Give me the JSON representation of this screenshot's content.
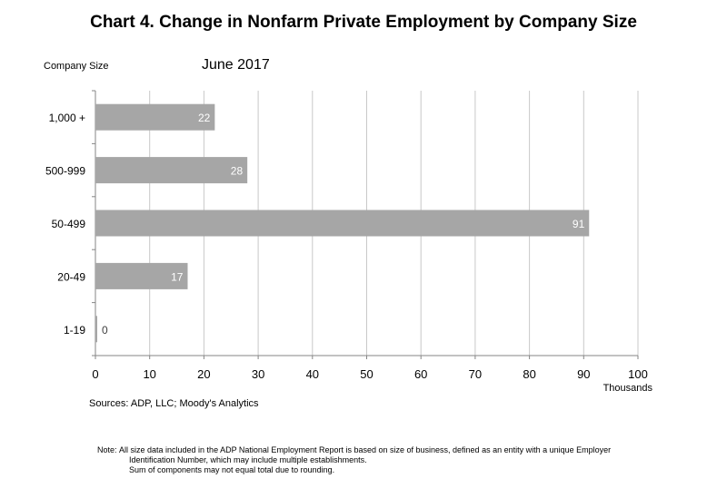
{
  "title": "Chart 4. Change in Nonfarm Private Employment by Company Size",
  "subtitle": "June 2017",
  "category_axis_caption": "Company Size",
  "sources": "Sources: ADP, LLC; Moody's Analytics",
  "note": {
    "label": "Note:",
    "lines": [
      "All size data included in the ADP National Employment Report is based on size of business, defined as an entity with a unique Employer",
      "Identification Number, which may include multiple establishments.",
      "Sum of components may not equal total due to rounding."
    ]
  },
  "colors": {
    "bar": "#a6a6a6",
    "grid": "#c8c8c8",
    "axis": "#868686",
    "bar_label": "#ffffff"
  },
  "chart_data": {
    "type": "bar",
    "orientation": "horizontal",
    "title": "Chart 4. Change in Nonfarm Private Employment by Company Size",
    "subtitle": "June 2017",
    "categories": [
      "1,000 +",
      "500-999",
      "50-499",
      "20-49",
      "1-19"
    ],
    "values": [
      22,
      28,
      91,
      17,
      0
    ],
    "data_labels": [
      "22",
      "28",
      "91",
      "17",
      "0"
    ],
    "xlabel": "Thousands",
    "ylabel": "Company Size",
    "xlim": [
      0,
      100
    ],
    "x_ticks": [
      0,
      10,
      20,
      30,
      40,
      50,
      60,
      70,
      80,
      90,
      100
    ],
    "grid": "vertical",
    "legend": "none"
  }
}
